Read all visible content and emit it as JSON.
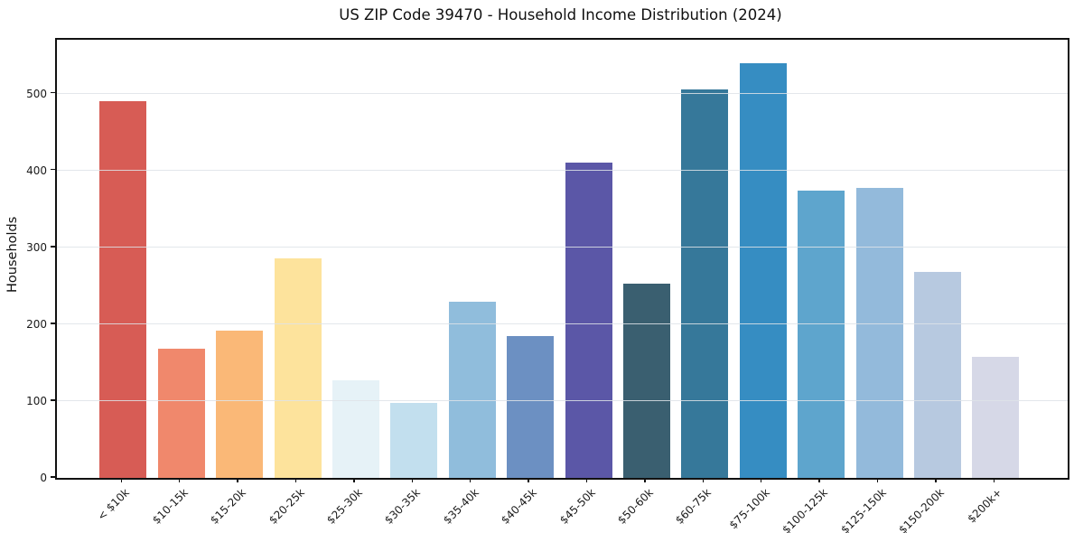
{
  "chart_data": {
    "type": "bar",
    "title": "US ZIP Code 39470 - Household Income Distribution (2024)",
    "xlabel": "",
    "ylabel": "Households",
    "categories": [
      "< $10k",
      "$10-15k",
      "$15-20k",
      "$20-25k",
      "$25-30k",
      "$30-35k",
      "$35-40k",
      "$40-45k",
      "$45-50k",
      "$50-60k",
      "$60-75k",
      "$75-100k",
      "$100-125k",
      "$125-150k",
      "$150-200k",
      "$200k+"
    ],
    "values": [
      490,
      168,
      192,
      286,
      127,
      97,
      229,
      185,
      410,
      253,
      505,
      540,
      374,
      377,
      268,
      157
    ],
    "bar_colors": [
      "#d75c55",
      "#f0886c",
      "#fab877",
      "#fde39c",
      "#e6f2f7",
      "#c2dfee",
      "#90bddc",
      "#6c90c2",
      "#5b57a7",
      "#3a5f70",
      "#36789a",
      "#368dc2",
      "#5ea5cd",
      "#93badb",
      "#b7c9e0",
      "#d6d8e7"
    ],
    "ylim": [
      0,
      570
    ],
    "yticks": [
      0,
      100,
      200,
      300,
      400,
      500
    ],
    "grid": "horizontal",
    "grid_color": "#e8ebee",
    "legend": "none",
    "background": "#ffffff",
    "spine_color": "#111111"
  }
}
